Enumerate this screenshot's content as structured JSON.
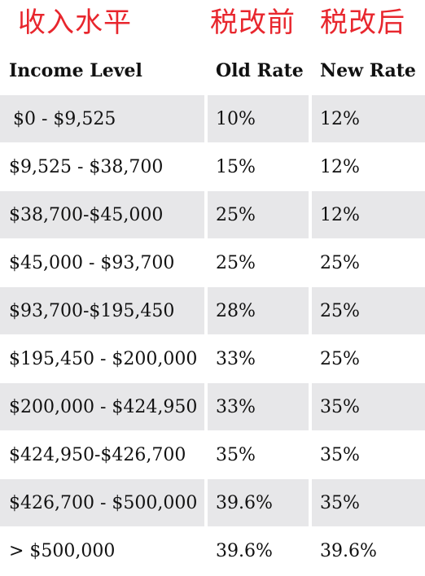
{
  "header_zh": {
    "col1": "收入水平",
    "col2": "税改前",
    "col3": "税改后"
  },
  "table": {
    "headers": [
      "Income Level",
      "Old Rate",
      "New Rate"
    ],
    "rows": [
      {
        "income": "$0 - $9,525",
        "old": "10%",
        "new": "12%"
      },
      {
        "income": "$9,525 - $38,700",
        "old": "15%",
        "new": "12%"
      },
      {
        "income": "$38,700-$45,000",
        "old": "25%",
        "new": "12%"
      },
      {
        "income": "$45,000 - $93,700",
        "old": "25%",
        "new": "25%"
      },
      {
        "income": "$93,700-$195,450",
        "old": "28%",
        "new": "25%"
      },
      {
        "income": "$195,450 - $200,000",
        "old": "33%",
        "new": "25%"
      },
      {
        "income": "$200,000 - $424,950",
        "old": "33%",
        "new": "35%"
      },
      {
        "income": "$424,950-$426,700",
        "old": "35%",
        "new": "35%"
      },
      {
        "income": "$426,700 - $500,000",
        "old": "39.6%",
        "new": "35%"
      },
      {
        "income": "> $500,000",
        "old": "39.6%",
        "new": "39.6%"
      }
    ]
  },
  "colors": {
    "chinese_header": "#e8262d",
    "row_shade": "#e7e7e9",
    "text": "#111111"
  }
}
